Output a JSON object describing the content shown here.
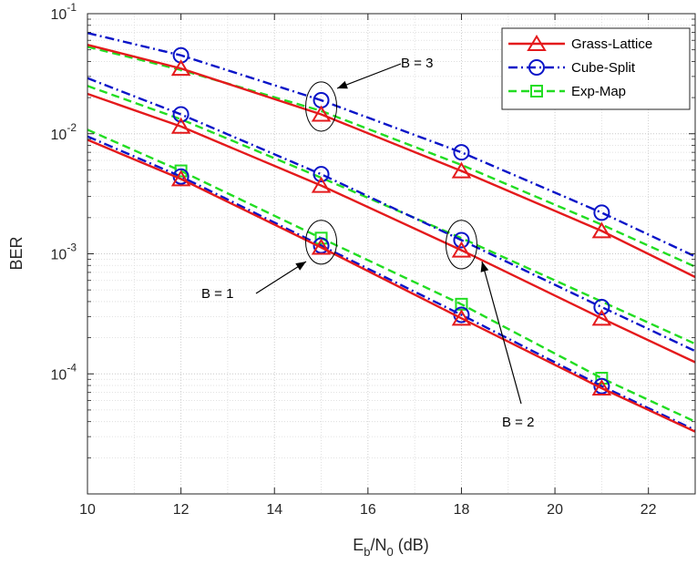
{
  "chart_data": {
    "type": "line",
    "xlabel": {
      "base": "E",
      "sub1": "b",
      "mid": "/N",
      "sub2": "0",
      "tail": " (dB)"
    },
    "ylabel": "BER",
    "xlim": [
      10,
      23
    ],
    "ylim": [
      1e-05,
      0.1
    ],
    "y_scale": "log",
    "x_ticks": [
      "10",
      "12",
      "14",
      "16",
      "18",
      "20",
      "22"
    ],
    "y_ticks": [
      {
        "base": "10",
        "exp": "-1",
        "value": 0.1
      },
      {
        "base": "10",
        "exp": "-2",
        "value": 0.01
      },
      {
        "base": "10",
        "exp": "-3",
        "value": 0.001
      },
      {
        "base": "10",
        "exp": "-4",
        "value": 0.0001
      }
    ],
    "grid": true,
    "legend_position": "top-right",
    "series": [
      {
        "name": "Grass-Lattice",
        "color": "#e41a1c",
        "dash": "solid",
        "marker": "triangle",
        "legend": true,
        "x": [
          10,
          12,
          15,
          18,
          21,
          23
        ],
        "y": [
          0.055,
          0.035,
          0.0145,
          0.0049,
          0.00155,
          0.00064
        ],
        "marker_x": [
          12,
          15,
          18,
          21
        ]
      },
      {
        "name": "Cube-Split",
        "color": "#0a14c8",
        "dash": "dashdot",
        "marker": "circle",
        "legend": true,
        "x": [
          10,
          12,
          15,
          18,
          21,
          23
        ],
        "y": [
          0.069,
          0.045,
          0.019,
          0.007,
          0.0022,
          0.00095
        ],
        "marker_x": [
          12,
          15,
          18,
          21
        ]
      },
      {
        "name": "Exp-Map",
        "color": "#22dd22",
        "dash": "dashed",
        "marker": "square",
        "legend": true,
        "x": [
          10,
          12,
          15,
          18,
          21,
          23
        ],
        "y": [
          0.053,
          0.034,
          0.0155,
          0.0055,
          0.00175,
          0.00078
        ],
        "marker_x": []
      },
      {
        "name": "",
        "color": "#e41a1c",
        "dash": "solid",
        "marker": "triangle",
        "legend": false,
        "x": [
          10,
          12,
          15,
          18,
          21,
          23
        ],
        "y": [
          0.0215,
          0.0115,
          0.0037,
          0.00107,
          0.00029,
          0.000125
        ],
        "marker_x": [
          12,
          15,
          18,
          21
        ]
      },
      {
        "name": "",
        "color": "#0a14c8",
        "dash": "dashdot",
        "marker": "circle",
        "legend": false,
        "x": [
          10,
          12,
          15,
          18,
          21,
          23
        ],
        "y": [
          0.029,
          0.0145,
          0.0046,
          0.0013,
          0.00036,
          0.000155
        ],
        "marker_x": [
          12,
          15,
          18,
          21
        ]
      },
      {
        "name": "",
        "color": "#22dd22",
        "dash": "dashed",
        "marker": "square",
        "legend": false,
        "x": [
          10,
          12,
          15,
          18,
          21,
          23
        ],
        "y": [
          0.025,
          0.0132,
          0.0043,
          0.00135,
          0.0004,
          0.000178
        ],
        "marker_x": []
      },
      {
        "name": "",
        "color": "#e41a1c",
        "dash": "solid",
        "marker": "triangle",
        "legend": false,
        "x": [
          10,
          12,
          15,
          18,
          21,
          23
        ],
        "y": [
          0.0089,
          0.0042,
          0.00113,
          0.00029,
          7.6e-05,
          3.3e-05
        ],
        "marker_x": [
          12,
          15,
          18,
          21
        ]
      },
      {
        "name": "",
        "color": "#0a14c8",
        "dash": "dashdot",
        "marker": "circle",
        "legend": false,
        "x": [
          10,
          12,
          15,
          18,
          21,
          23
        ],
        "y": [
          0.0095,
          0.0044,
          0.00117,
          0.00031,
          7.9e-05,
          3.4e-05
        ],
        "marker_x": [
          12,
          15,
          18,
          21
        ]
      },
      {
        "name": "",
        "color": "#22dd22",
        "dash": "dashed",
        "marker": "square",
        "legend": false,
        "x": [
          10,
          12,
          15,
          18,
          21,
          23
        ],
        "y": [
          0.0108,
          0.0049,
          0.00135,
          0.00038,
          9.2e-05,
          4e-05
        ],
        "marker_x": [
          12,
          15,
          18,
          21
        ]
      }
    ],
    "annotations": [
      {
        "text": "B = 3",
        "ellipse_x": 15,
        "ellipse_y_low": 0.0105,
        "ellipse_y_high": 0.027
      },
      {
        "text": "B = 2",
        "ellipse_x": 18,
        "ellipse_y_low": 0.00075,
        "ellipse_y_high": 0.0019
      },
      {
        "text": "B = 1",
        "ellipse_x": 15,
        "ellipse_y_low": 0.00082,
        "ellipse_y_high": 0.0019
      }
    ]
  }
}
